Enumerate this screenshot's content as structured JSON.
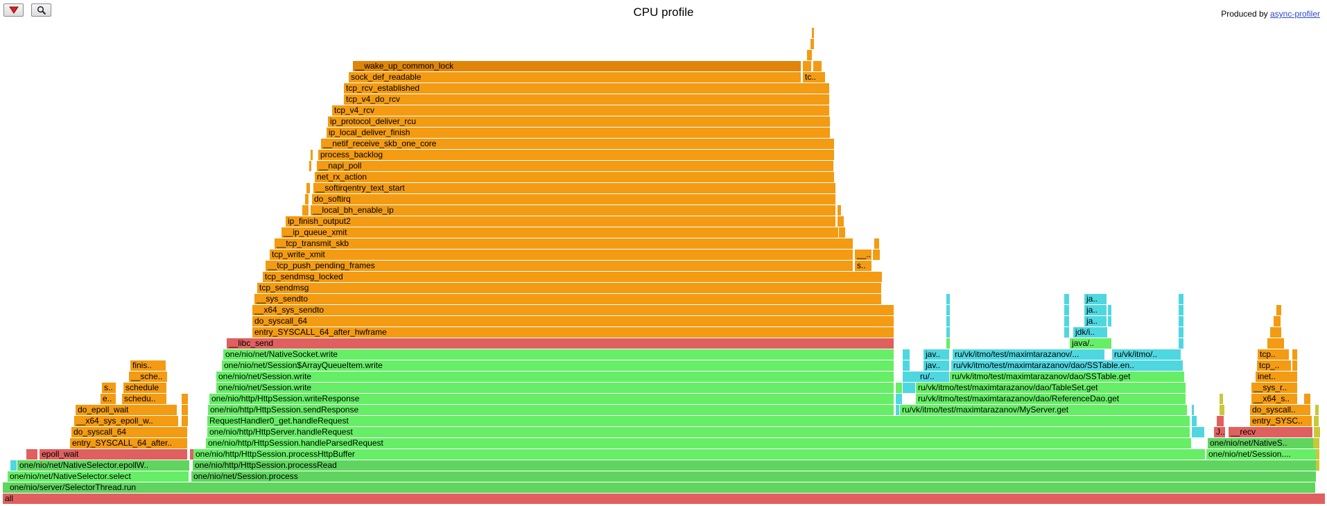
{
  "header": {
    "title": "CPU profile",
    "credit_prefix": "Produced by ",
    "credit_link": "async-profiler",
    "reverse_icon": "triangle-down-icon",
    "search_icon": "magnifier-icon"
  },
  "colors": {
    "java": "#5fd45f",
    "java_light": "#66ee66",
    "native": "#e06060",
    "kernel": "#f39b12",
    "kernel_dark": "#e0850a",
    "inlined": "#4fd7e0",
    "cpp": "#c8c83a"
  },
  "frames": [
    {
      "label": "all",
      "x0": 0.002,
      "x1": 0.999,
      "level": 0,
      "kind": "native"
    },
    {
      "label": "one/nio/server/SelectorThread.run",
      "x0": 0.006,
      "x1": 0.992,
      "level": 1,
      "kind": "java"
    },
    {
      "label": "one/nio/net/NativeSelector.select",
      "x0": 0.006,
      "x1": 0.143,
      "level": 2,
      "kind": "java_light"
    },
    {
      "label": "one/nio/net/Session.process",
      "x0": 0.144,
      "x1": 0.992,
      "level": 2,
      "kind": "java"
    },
    {
      "label": "one/nio/net/NativeSelector.epollW..",
      "x0": 0.013,
      "x1": 0.143,
      "level": 3,
      "kind": "java"
    },
    {
      "label": "one/nio/http/HttpSession.processRead",
      "x0": 0.145,
      "x1": 0.992,
      "level": 3,
      "kind": "java"
    },
    {
      "label": "epoll_wait",
      "x0": 0.03,
      "x1": 0.142,
      "level": 4,
      "kind": "native"
    },
    {
      "label": "one/nio/http/HttpSession.processHttpBuffer",
      "x0": 0.146,
      "x1": 0.909,
      "level": 4,
      "kind": "java_light"
    },
    {
      "label": "one/nio/net/Session....",
      "x0": 0.909,
      "x1": 0.992,
      "level": 4,
      "kind": "java_light"
    },
    {
      "label": "entry_SYSCALL_64_after..",
      "x0": 0.053,
      "x1": 0.142,
      "level": 5,
      "kind": "kernel"
    },
    {
      "label": "one/nio/http/HttpSession.handleParsedRequest",
      "x0": 0.155,
      "x1": 0.898,
      "level": 5,
      "kind": "java_light"
    },
    {
      "label": "one/nio/net/NativeS..",
      "x0": 0.91,
      "x1": 0.99,
      "level": 5,
      "kind": "java"
    },
    {
      "label": "do_syscall_64",
      "x0": 0.054,
      "x1": 0.142,
      "level": 6,
      "kind": "kernel"
    },
    {
      "label": "one/nio/http/HttpServer.handleRequest",
      "x0": 0.156,
      "x1": 0.897,
      "level": 6,
      "kind": "java_light"
    },
    {
      "label": "__recv",
      "x0": 0.926,
      "x1": 0.99,
      "level": 6,
      "kind": "native"
    },
    {
      "label": "J..",
      "x0": 0.915,
      "x1": 0.924,
      "level": 6,
      "kind": "native"
    },
    {
      "label": "__x64_sys_epoll_w..",
      "x0": 0.056,
      "x1": 0.135,
      "level": 7,
      "kind": "kernel"
    },
    {
      "label": "RequestHandler0_get.handleRequest",
      "x0": 0.156,
      "x1": 0.897,
      "level": 7,
      "kind": "java_light"
    },
    {
      "label": "entry_SYSC..",
      "x0": 0.942,
      "x1": 0.989,
      "level": 7,
      "kind": "kernel"
    },
    {
      "label": "do_epoll_wait",
      "x0": 0.057,
      "x1": 0.134,
      "level": 8,
      "kind": "kernel"
    },
    {
      "label": "one/nio/http/HttpSession.sendResponse",
      "x0": 0.157,
      "x1": 0.674,
      "level": 8,
      "kind": "java_light"
    },
    {
      "label": "ru/vk/itmo/test/maximtarazanov/MyServer.get",
      "x0": 0.678,
      "x1": 0.895,
      "level": 8,
      "kind": "java_light"
    },
    {
      "label": "do_syscall..",
      "x0": 0.942,
      "x1": 0.988,
      "level": 8,
      "kind": "kernel"
    },
    {
      "label": "e..",
      "x0": 0.076,
      "x1": 0.088,
      "level": 9,
      "kind": "kernel"
    },
    {
      "label": "schedu..",
      "x0": 0.092,
      "x1": 0.126,
      "level": 9,
      "kind": "kernel"
    },
    {
      "label": "one/nio/http/HttpSession.writeResponse",
      "x0": 0.158,
      "x1": 0.674,
      "level": 9,
      "kind": "java_light"
    },
    {
      "label": "ru/vk/itmo/test/maximtarazanov/dao/ReferenceDao.get",
      "x0": 0.69,
      "x1": 0.894,
      "level": 9,
      "kind": "java_light"
    },
    {
      "label": "__x64_s..",
      "x0": 0.943,
      "x1": 0.978,
      "level": 9,
      "kind": "kernel"
    },
    {
      "label": "s..",
      "x0": 0.077,
      "x1": 0.088,
      "level": 10,
      "kind": "kernel"
    },
    {
      "label": "schedule",
      "x0": 0.093,
      "x1": 0.126,
      "level": 10,
      "kind": "kernel"
    },
    {
      "label": "one/nio/net/Session.write",
      "x0": 0.163,
      "x1": 0.674,
      "level": 10,
      "kind": "java_light"
    },
    {
      "label": "ru/vk/itmo/test/maximtarazanov/dao/TableSet.get",
      "x0": 0.69,
      "x1": 0.894,
      "level": 10,
      "kind": "java_light"
    },
    {
      "label": "__sys_r..",
      "x0": 0.943,
      "x1": 0.978,
      "level": 10,
      "kind": "kernel"
    },
    {
      "label": "__sche..",
      "x0": 0.097,
      "x1": 0.126,
      "level": 11,
      "kind": "kernel"
    },
    {
      "label": "one/nio/net/Session.write",
      "x0": 0.163,
      "x1": 0.674,
      "level": 11,
      "kind": "java_light"
    },
    {
      "label": "ru/..",
      "x0": 0.692,
      "x1": 0.716,
      "level": 11,
      "kind": "inlined"
    },
    {
      "label": "ru/vk/itmo/test/maximtarazanov/dao/SSTable.get",
      "x0": 0.716,
      "x1": 0.893,
      "level": 11,
      "kind": "java_light"
    },
    {
      "label": "inet..",
      "x0": 0.946,
      "x1": 0.978,
      "level": 11,
      "kind": "kernel"
    },
    {
      "label": "finis..",
      "x0": 0.098,
      "x1": 0.125,
      "level": 12,
      "kind": "kernel"
    },
    {
      "label": "one/nio/net/Session$ArrayQueueItem.write",
      "x0": 0.167,
      "x1": 0.674,
      "level": 12,
      "kind": "java_light"
    },
    {
      "label": "jav..",
      "x0": 0.696,
      "x1": 0.716,
      "level": 12,
      "kind": "inlined"
    },
    {
      "label": "ru/vk/itmo/test/maximtarazanov/dao/SSTable.en..",
      "x0": 0.717,
      "x1": 0.892,
      "level": 12,
      "kind": "inlined"
    },
    {
      "label": "tcp_..",
      "x0": 0.947,
      "x1": 0.973,
      "level": 12,
      "kind": "kernel"
    },
    {
      "label": "one/nio/net/NativeSocket.write",
      "x0": 0.168,
      "x1": 0.674,
      "level": 13,
      "kind": "java_light"
    },
    {
      "label": "jav..",
      "x0": 0.696,
      "x1": 0.716,
      "level": 13,
      "kind": "inlined"
    },
    {
      "label": "ru/vk/itmo/test/maximtarazanov/...",
      "x0": 0.718,
      "x1": 0.833,
      "level": 13,
      "kind": "inlined"
    },
    {
      "label": "ru/vk/itmo/..",
      "x0": 0.838,
      "x1": 0.89,
      "level": 13,
      "kind": "inlined"
    },
    {
      "label": "tcp..",
      "x0": 0.948,
      "x1": 0.972,
      "level": 13,
      "kind": "kernel"
    },
    {
      "label": "__libc_send",
      "x0": 0.171,
      "x1": 0.674,
      "level": 14,
      "kind": "native"
    },
    {
      "label": "java/..",
      "x0": 0.806,
      "x1": 0.838,
      "level": 14,
      "kind": "java_light"
    },
    {
      "label": "entry_SYSCALL_64_after_hwframe",
      "x0": 0.19,
      "x1": 0.674,
      "level": 15,
      "kind": "kernel"
    },
    {
      "label": "jdk/i..",
      "x0": 0.809,
      "x1": 0.835,
      "level": 15,
      "kind": "inlined"
    },
    {
      "label": "do_syscall_64",
      "x0": 0.19,
      "x1": 0.674,
      "level": 16,
      "kind": "kernel"
    },
    {
      "label": "ja..",
      "x0": 0.817,
      "x1": 0.834,
      "level": 16,
      "kind": "inlined"
    },
    {
      "label": "__x64_sys_sendto",
      "x0": 0.19,
      "x1": 0.674,
      "level": 17,
      "kind": "kernel"
    },
    {
      "label": "ja..",
      "x0": 0.817,
      "x1": 0.834,
      "level": 17,
      "kind": "inlined"
    },
    {
      "label": "__sys_sendto",
      "x0": 0.192,
      "x1": 0.665,
      "level": 18,
      "kind": "kernel"
    },
    {
      "label": "ja..",
      "x0": 0.817,
      "x1": 0.834,
      "level": 18,
      "kind": "inlined"
    },
    {
      "label": "tcp_sendmsg",
      "x0": 0.194,
      "x1": 0.665,
      "level": 19,
      "kind": "kernel"
    },
    {
      "label": "tcp_sendmsg_locked",
      "x0": 0.198,
      "x1": 0.665,
      "level": 20,
      "kind": "kernel"
    },
    {
      "label": "__tcp_push_pending_frames",
      "x0": 0.2,
      "x1": 0.643,
      "level": 21,
      "kind": "kernel"
    },
    {
      "label": "s..",
      "x0": 0.644,
      "x1": 0.657,
      "level": 21,
      "kind": "kernel"
    },
    {
      "label": "tcp_write_xmit",
      "x0": 0.203,
      "x1": 0.643,
      "level": 22,
      "kind": "kernel"
    },
    {
      "label": "__..",
      "x0": 0.644,
      "x1": 0.657,
      "level": 22,
      "kind": "kernel"
    },
    {
      "label": "__tcp_transmit_skb",
      "x0": 0.207,
      "x1": 0.643,
      "level": 23,
      "kind": "kernel"
    },
    {
      "label": "__ip_queue_xmit",
      "x0": 0.212,
      "x1": 0.632,
      "level": 24,
      "kind": "kernel"
    },
    {
      "label": "ip_finish_output2",
      "x0": 0.215,
      "x1": 0.63,
      "level": 25,
      "kind": "kernel"
    },
    {
      "label": "__local_bh_enable_ip",
      "x0": 0.234,
      "x1": 0.63,
      "level": 26,
      "kind": "kernel"
    },
    {
      "label": "do_softirq",
      "x0": 0.235,
      "x1": 0.63,
      "level": 27,
      "kind": "kernel"
    },
    {
      "label": "__softirqentry_text_start",
      "x0": 0.236,
      "x1": 0.63,
      "level": 28,
      "kind": "kernel"
    },
    {
      "label": "net_rx_action",
      "x0": 0.237,
      "x1": 0.629,
      "level": 29,
      "kind": "kernel"
    },
    {
      "label": "__napi_poll",
      "x0": 0.239,
      "x1": 0.629,
      "level": 30,
      "kind": "kernel"
    },
    {
      "label": "process_backlog",
      "x0": 0.24,
      "x1": 0.629,
      "level": 31,
      "kind": "kernel"
    },
    {
      "label": "__netif_receive_skb_one_core",
      "x0": 0.242,
      "x1": 0.629,
      "level": 32,
      "kind": "kernel"
    },
    {
      "label": "ip_local_deliver_finish",
      "x0": 0.246,
      "x1": 0.626,
      "level": 33,
      "kind": "kernel"
    },
    {
      "label": "ip_protocol_deliver_rcu",
      "x0": 0.247,
      "x1": 0.626,
      "level": 34,
      "kind": "kernel"
    },
    {
      "label": "tcp_v4_rcv",
      "x0": 0.25,
      "x1": 0.625,
      "level": 35,
      "kind": "kernel"
    },
    {
      "label": "tcp_v4_do_rcv",
      "x0": 0.259,
      "x1": 0.625,
      "level": 36,
      "kind": "kernel"
    },
    {
      "label": "tcp_rcv_established",
      "x0": 0.259,
      "x1": 0.625,
      "level": 37,
      "kind": "kernel"
    },
    {
      "label": "sock_def_readable",
      "x0": 0.263,
      "x1": 0.604,
      "level": 38,
      "kind": "kernel"
    },
    {
      "label": "tc..",
      "x0": 0.605,
      "x1": 0.622,
      "level": 38,
      "kind": "kernel"
    },
    {
      "label": "__wake_up_common_lock",
      "x0": 0.266,
      "x1": 0.604,
      "level": 39,
      "kind": "kernel_dark"
    }
  ],
  "slivers": [
    {
      "x0": 0.002,
      "x1": 0.006,
      "level": 1,
      "kind": "java"
    },
    {
      "x0": 0.008,
      "x1": 0.013,
      "level": 3,
      "kind": "inlined"
    },
    {
      "x0": 0.02,
      "x1": 0.029,
      "level": 4,
      "kind": "native"
    },
    {
      "x0": 0.143,
      "x1": 0.146,
      "level": 4,
      "kind": "native"
    },
    {
      "x0": 0.137,
      "x1": 0.142,
      "level": 7,
      "kind": "kernel"
    },
    {
      "x0": 0.137,
      "x1": 0.142,
      "level": 8,
      "kind": "kernel"
    },
    {
      "x0": 0.137,
      "x1": 0.142,
      "level": 9,
      "kind": "kernel"
    },
    {
      "x0": 0.675,
      "x1": 0.678,
      "level": 8,
      "kind": "inlined"
    },
    {
      "x0": 0.675,
      "x1": 0.68,
      "level": 9,
      "kind": "inlined"
    },
    {
      "x0": 0.675,
      "x1": 0.68,
      "level": 10,
      "kind": "java_light"
    },
    {
      "x0": 0.68,
      "x1": 0.69,
      "level": 10,
      "kind": "inlined"
    },
    {
      "x0": 0.68,
      "x1": 0.692,
      "level": 11,
      "kind": "inlined"
    },
    {
      "x0": 0.68,
      "x1": 0.686,
      "level": 12,
      "kind": "inlined"
    },
    {
      "x0": 0.68,
      "x1": 0.686,
      "level": 13,
      "kind": "inlined"
    },
    {
      "x0": 0.713,
      "x1": 0.716,
      "level": 14,
      "kind": "java_light"
    },
    {
      "x0": 0.713,
      "x1": 0.716,
      "level": 15,
      "kind": "inlined"
    },
    {
      "x0": 0.713,
      "x1": 0.716,
      "level": 16,
      "kind": "inlined"
    },
    {
      "x0": 0.713,
      "x1": 0.716,
      "level": 17,
      "kind": "inlined"
    },
    {
      "x0": 0.713,
      "x1": 0.716,
      "level": 18,
      "kind": "inlined"
    },
    {
      "x0": 0.802,
      "x1": 0.806,
      "level": 15,
      "kind": "inlined"
    },
    {
      "x0": 0.802,
      "x1": 0.806,
      "level": 16,
      "kind": "inlined"
    },
    {
      "x0": 0.802,
      "x1": 0.806,
      "level": 17,
      "kind": "inlined"
    },
    {
      "x0": 0.802,
      "x1": 0.806,
      "level": 18,
      "kind": "inlined"
    },
    {
      "x0": 0.835,
      "x1": 0.838,
      "level": 16,
      "kind": "inlined"
    },
    {
      "x0": 0.835,
      "x1": 0.838,
      "level": 17,
      "kind": "inlined"
    },
    {
      "x0": 0.888,
      "x1": 0.892,
      "level": 14,
      "kind": "inlined"
    },
    {
      "x0": 0.888,
      "x1": 0.892,
      "level": 15,
      "kind": "inlined"
    },
    {
      "x0": 0.888,
      "x1": 0.892,
      "level": 16,
      "kind": "inlined"
    },
    {
      "x0": 0.888,
      "x1": 0.892,
      "level": 17,
      "kind": "inlined"
    },
    {
      "x0": 0.888,
      "x1": 0.892,
      "level": 18,
      "kind": "inlined"
    },
    {
      "x0": 0.898,
      "x1": 0.903,
      "level": 6,
      "kind": "inlined"
    },
    {
      "x0": 0.903,
      "x1": 0.908,
      "level": 6,
      "kind": "inlined"
    },
    {
      "x0": 0.898,
      "x1": 0.902,
      "level": 7,
      "kind": "inlined"
    },
    {
      "x0": 0.898,
      "x1": 0.9,
      "level": 8,
      "kind": "inlined"
    },
    {
      "x0": 0.917,
      "x1": 0.923,
      "level": 7,
      "kind": "native"
    },
    {
      "x0": 0.919,
      "x1": 0.923,
      "level": 8,
      "kind": "cpp"
    },
    {
      "x0": 0.919,
      "x1": 0.922,
      "level": 9,
      "kind": "cpp"
    },
    {
      "x0": 0.983,
      "x1": 0.988,
      "level": 9,
      "kind": "kernel"
    },
    {
      "x0": 0.989,
      "x1": 0.995,
      "level": 3,
      "kind": "cpp"
    },
    {
      "x0": 0.989,
      "x1": 0.995,
      "level": 4,
      "kind": "cpp"
    },
    {
      "x0": 0.989,
      "x1": 0.995,
      "level": 5,
      "kind": "cpp"
    },
    {
      "x0": 0.99,
      "x1": 0.995,
      "level": 6,
      "kind": "cpp"
    },
    {
      "x0": 0.99,
      "x1": 0.994,
      "level": 7,
      "kind": "cpp"
    },
    {
      "x0": 0.991,
      "x1": 0.994,
      "level": 8,
      "kind": "cpp"
    },
    {
      "x0": 0.974,
      "x1": 0.978,
      "level": 12,
      "kind": "kernel"
    },
    {
      "x0": 0.974,
      "x1": 0.978,
      "level": 13,
      "kind": "kernel"
    },
    {
      "x0": 0.955,
      "x1": 0.968,
      "level": 14,
      "kind": "kernel"
    },
    {
      "x0": 0.957,
      "x1": 0.966,
      "level": 15,
      "kind": "kernel"
    },
    {
      "x0": 0.96,
      "x1": 0.966,
      "level": 16,
      "kind": "kernel"
    },
    {
      "x0": 0.962,
      "x1": 0.966,
      "level": 17,
      "kind": "kernel"
    },
    {
      "x0": 0.228,
      "x1": 0.233,
      "level": 26,
      "kind": "kernel"
    },
    {
      "x0": 0.23,
      "x1": 0.233,
      "level": 27,
      "kind": "kernel"
    },
    {
      "x0": 0.231,
      "x1": 0.234,
      "level": 28,
      "kind": "kernel"
    },
    {
      "x0": 0.233,
      "x1": 0.235,
      "level": 30,
      "kind": "kernel"
    },
    {
      "x0": 0.234,
      "x1": 0.236,
      "level": 31,
      "kind": "kernel"
    },
    {
      "x0": 0.632,
      "x1": 0.637,
      "level": 24,
      "kind": "kernel"
    },
    {
      "x0": 0.631,
      "x1": 0.636,
      "level": 25,
      "kind": "kernel"
    },
    {
      "x0": 0.631,
      "x1": 0.634,
      "level": 26,
      "kind": "kernel"
    },
    {
      "x0": 0.605,
      "x1": 0.612,
      "level": 39,
      "kind": "kernel"
    },
    {
      "x0": 0.613,
      "x1": 0.62,
      "level": 39,
      "kind": "kernel"
    },
    {
      "x0": 0.608,
      "x1": 0.612,
      "level": 40,
      "kind": "kernel"
    },
    {
      "x0": 0.611,
      "x1": 0.614,
      "level": 41,
      "kind": "kernel"
    },
    {
      "x0": 0.612,
      "x1": 0.614,
      "level": 42,
      "kind": "kernel"
    },
    {
      "x0": 0.658,
      "x1": 0.664,
      "level": 22,
      "kind": "kernel"
    },
    {
      "x0": 0.659,
      "x1": 0.663,
      "level": 23,
      "kind": "kernel"
    }
  ]
}
